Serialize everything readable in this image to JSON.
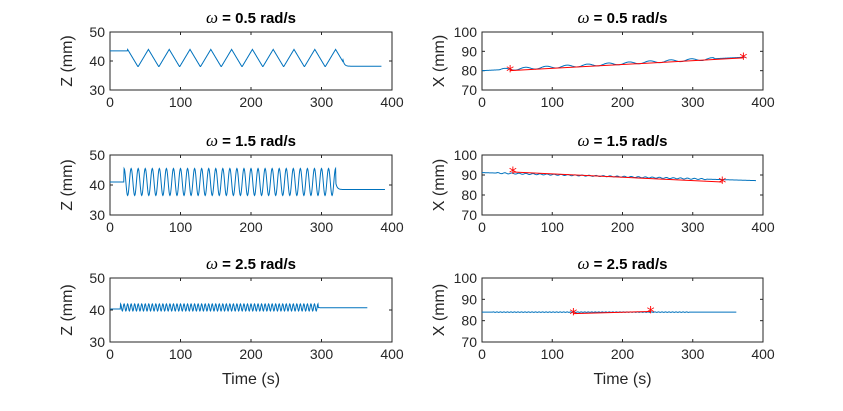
{
  "chart_data": [
    {
      "type": "line",
      "panel": "top-left",
      "title_symbol": "ω",
      "title_rest": " = 0.5 rad/s",
      "xlabel": "",
      "ylabel": "Z (mm)",
      "xlim": [
        0,
        400
      ],
      "ylim": [
        30,
        50
      ],
      "xticks": [
        0,
        100,
        200,
        300,
        400
      ],
      "yticks": [
        30,
        40,
        50
      ],
      "signal": {
        "kind": "zigzag",
        "t_start": 0,
        "t_osc_start": 25,
        "t_osc_end": 330,
        "t_end": 385,
        "base_before": 43.5,
        "center": 41,
        "amplitude": 3,
        "period": 29.5,
        "base_after": 38.2
      },
      "fit": null
    },
    {
      "type": "line",
      "panel": "top-right",
      "title_symbol": "ω",
      "title_rest": " = 0.5 rad/s",
      "xlabel": "",
      "ylabel": "X (mm)",
      "xlim": [
        0,
        400
      ],
      "ylim": [
        70,
        100
      ],
      "xticks": [
        0,
        100,
        200,
        300,
        400
      ],
      "yticks": [
        70,
        80,
        90,
        100
      ],
      "signal": {
        "kind": "drift",
        "t_start": 0,
        "t_end": 375,
        "x0": 80,
        "x1": 87,
        "amplitude": 0.6,
        "period": 29.5,
        "t_osc_start": 25,
        "t_osc_end": 330
      },
      "fit": {
        "points": [
          [
            40,
            80
          ],
          [
            372,
            86.6
          ]
        ]
      }
    },
    {
      "type": "line",
      "panel": "middle-left",
      "title_symbol": "ω",
      "title_rest": " = 1.5 rad/s",
      "xlabel": "",
      "ylabel": "Z (mm)",
      "xlim": [
        0,
        400
      ],
      "ylim": [
        30,
        50
      ],
      "xticks": [
        0,
        100,
        200,
        300,
        400
      ],
      "yticks": [
        30,
        40,
        50
      ],
      "signal": {
        "kind": "sine",
        "t_start": 0,
        "t_osc_start": 20,
        "t_osc_end": 320,
        "t_end": 390,
        "base_before": 41,
        "center": 41,
        "amplitude": 4.5,
        "period": 10,
        "base_after": 38.5
      },
      "fit": null
    },
    {
      "type": "line",
      "panel": "middle-right",
      "title_symbol": "ω",
      "title_rest": " = 1.5 rad/s",
      "xlabel": "",
      "ylabel": "X (mm)",
      "xlim": [
        0,
        400
      ],
      "ylim": [
        70,
        100
      ],
      "xticks": [
        0,
        100,
        200,
        300,
        400
      ],
      "yticks": [
        70,
        80,
        90,
        100
      ],
      "signal": {
        "kind": "drift",
        "t_start": 0,
        "t_end": 390,
        "x0": 91.2,
        "x1": 87.2,
        "amplitude": 0.25,
        "period": 10,
        "t_osc_start": 20,
        "t_osc_end": 320
      },
      "fit": {
        "points": [
          [
            44,
            91.5
          ],
          [
            342,
            86.5
          ]
        ]
      }
    },
    {
      "type": "line",
      "panel": "bottom-left",
      "title_symbol": "ω",
      "title_rest": " = 2.5  rad/s",
      "xlabel": "Time (s)",
      "ylabel": "Z (mm)",
      "xlim": [
        0,
        400
      ],
      "ylim": [
        30,
        50
      ],
      "xticks": [
        0,
        100,
        200,
        300,
        400
      ],
      "yticks": [
        30,
        40,
        50
      ],
      "signal": {
        "kind": "sine",
        "t_start": 0,
        "t_osc_start": 15,
        "t_osc_end": 295,
        "t_end": 365,
        "base_before": 40.3,
        "center": 40.8,
        "amplitude": 1.1,
        "period": 5,
        "base_after": 40.7
      },
      "fit": null
    },
    {
      "type": "line",
      "panel": "bottom-right",
      "title_symbol": "ω",
      "title_rest": " = 2.5  rad/s",
      "xlabel": "Time (s)",
      "ylabel": "X (mm)",
      "xlim": [
        0,
        400
      ],
      "ylim": [
        70,
        100
      ],
      "xticks": [
        0,
        100,
        200,
        300,
        400
      ],
      "yticks": [
        70,
        80,
        90,
        100
      ],
      "signal": {
        "kind": "drift",
        "t_start": 0,
        "t_end": 362,
        "x0": 84,
        "x1": 84,
        "amplitude": 0.1,
        "period": 5,
        "t_osc_start": 15,
        "t_osc_end": 295
      },
      "fit": {
        "points": [
          [
            130,
            83.3
          ],
          [
            240,
            84.3
          ]
        ]
      }
    }
  ],
  "colors": {
    "trace": "#0072bd",
    "fit": "#ff0000",
    "axes": "#262626"
  },
  "marker_glyph": "*"
}
